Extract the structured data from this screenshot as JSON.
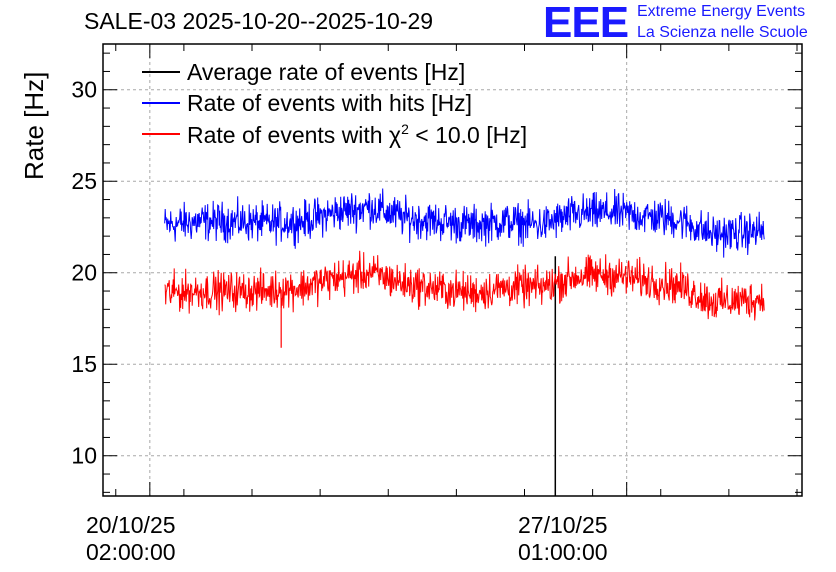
{
  "chart_data": {
    "type": "line",
    "title": "SALE-03 2025-10-20--2025-10-29",
    "xlabel": "",
    "ylabel": "Rate [Hz]",
    "ylim": [
      7.8,
      32.5
    ],
    "x_unit": "days since 20/10/25 00:00:00",
    "xlim": [
      -0.6,
      9.6
    ],
    "yticks": [
      10,
      15,
      20,
      25,
      30
    ],
    "xticks": [
      {
        "x": 0.0833,
        "date": "20/10/25",
        "time": "02:00:00"
      },
      {
        "x": 7.0417,
        "date": "27/10/25",
        "time": "01:00:00"
      }
    ],
    "grid": true,
    "legend_position": "top-left",
    "series": [
      {
        "name": "Average rate of events [Hz]",
        "color": "#000000",
        "x": [
          6.0,
          6.0,
          6.0
        ],
        "y": [
          7.8,
          17.9,
          20.9
        ]
      },
      {
        "name": "Rate of events with hits [Hz]",
        "color": "#0000ff",
        "x": [
          0.3,
          0.8,
          1.3,
          1.8,
          2.3,
          2.8,
          3.3,
          3.8,
          4.3,
          4.8,
          5.3,
          5.8,
          6.3,
          6.8,
          7.3,
          7.8,
          8.3,
          8.8,
          9.05
        ],
        "y": [
          22.6,
          22.8,
          22.8,
          22.7,
          22.8,
          23.3,
          23.6,
          23.0,
          22.8,
          22.6,
          22.8,
          22.6,
          23.2,
          23.3,
          23.1,
          22.9,
          22.1,
          22.2,
          22.3
        ],
        "noise": 0.9
      },
      {
        "name": "Rate of events with χ² < 10.0 [Hz]",
        "color": "#ff0000",
        "x": [
          0.3,
          0.8,
          1.3,
          1.8,
          2.3,
          2.8,
          3.3,
          3.8,
          4.3,
          4.8,
          5.3,
          5.8,
          6.3,
          6.8,
          7.3,
          7.8,
          8.3,
          8.8,
          9.05
        ],
        "y": [
          18.9,
          19.0,
          19.0,
          19.0,
          19.2,
          19.7,
          20.0,
          19.4,
          19.1,
          18.9,
          19.2,
          19.2,
          19.8,
          19.9,
          19.6,
          19.3,
          18.4,
          18.5,
          18.6
        ],
        "noise": 0.9,
        "dips": [
          {
            "x": 2.0,
            "y": 15.9
          }
        ]
      }
    ]
  },
  "legend": {
    "avg_label": "Average rate of events [Hz]",
    "hits_label": "Rate of events with hits [Hz]",
    "chi_prefix": "Rate of events with χ",
    "chi_sup": "2",
    "chi_suffix": " < 10.0 [Hz]"
  },
  "logo": {
    "mark": "EEE",
    "line1": "Extreme Energy Events",
    "line2": "La Scienza nelle Scuole"
  }
}
